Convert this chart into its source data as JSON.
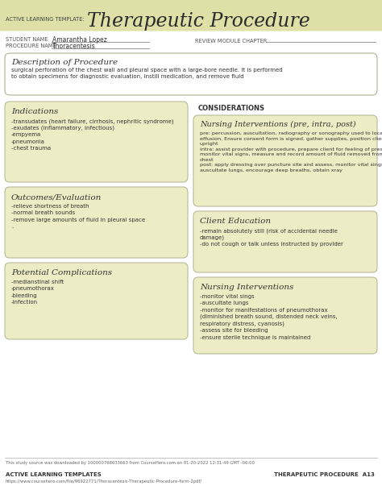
{
  "white": "#ffffff",
  "header_bg": "#dfe0a8",
  "box_bg": "#ecedc4",
  "border_color": "#b8b99a",
  "text_dark": "#333333",
  "title_text": "Therapeutic Procedure",
  "template_label": "ACTIVE LEARNING TEMPLATE:",
  "student_name_label": "STUDENT NAME",
  "procedure_name_label": "PROCEDURE NAME",
  "student_name": "Amarantha Lopez",
  "procedure_name": "Thoracentesis",
  "review_module": "REVIEW MODULE CHAPTER",
  "description_title": "Description of Procedure",
  "description_text": "surgical perforation of the chest wall and pleural space with a large-bore needle. It is performed\nto obtain specimens for diagnostic evaluation, instill medication, and remove fluid",
  "indications_title": "Indications",
  "indications_text": "-transudates (heart failure, cirrhosis, nephritic syndrome)\n-exudates (inflammatory, infectious)\n-empyema\n-pneumonia\n-chest trauma",
  "considerations_label": "CONSIDERATIONS",
  "nursing_pre_title": "Nursing Interventions (pre, intra, post)",
  "nursing_pre_text": "pre: percussion, auscultation, radiography or sonography used to locate\neffusion. Ensure consent form is signed, gather supplies, position client\nupright\nintra: assist provider with procedure, prepare client for feeling of pressure,\nmonitor vital signs, measure and record amount of fluid removed from\nchest\npost: apply dressing over puncture site and assess, monitor vital sings,\nauscultate lungs, encourage deep breaths, obtain xray",
  "outcomes_title": "Outcomes/Evaluation",
  "outcomes_text": "-relieve shortness of breath\n-normal breath sounds\n-remove large amounts of fluid in pleural space\n.",
  "client_ed_title": "Client Education",
  "client_ed_text": "-remain absolutely still (risk of accidental needle\ndamage)\n-do not cough or talk unless instructed by provider",
  "complications_title": "Potential Complications",
  "complications_text": "-medianstinal shift\n-pneumothorax\n-bleeding\n-infection",
  "nursing_title": "Nursing Interventions",
  "nursing_text": "-monitor vital sings\n-auscultate lungs\n-monitor for manifestations of pneumothorax\n(diminished breath sound, distended neck veins,\nrespiratory distress, cyanosis)\n-assess site for bleeding\n-ensure sterile technique is maintained",
  "footer_line1": "This study source was downloaded by 100000768633663 from CourseHero.com on 01-20-2022 12:31:49 GMT -06:00",
  "footer_url": "https://www.coursehero.com/file/96922771/Thoracentesis-Therapeutic-Procedure-form-2pdf/",
  "footer_right": "THERAPEUTIC PROCEDURE  A13",
  "footer_left2": "ACTIVE LEARNING TEMPLATES"
}
